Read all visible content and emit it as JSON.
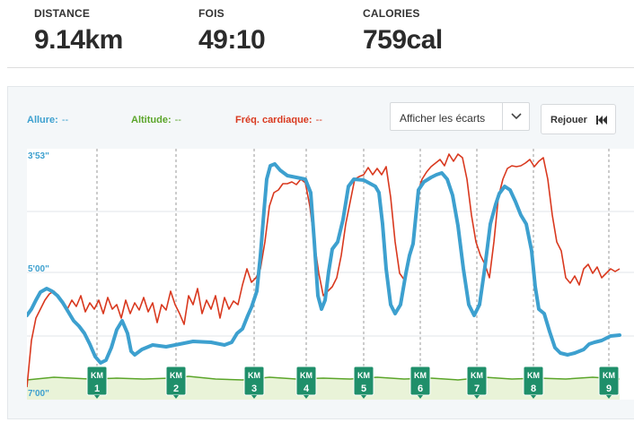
{
  "stats": [
    {
      "label": "DISTANCE",
      "value": "9.14km"
    },
    {
      "label": "FOIS",
      "value": "49:10"
    },
    {
      "label": "CALORIES",
      "value": "759cal"
    }
  ],
  "legend": {
    "pace": {
      "label": "Allure:",
      "value": "--",
      "color": "#3da0cf"
    },
    "altitude": {
      "label": "Altitude:",
      "value": "--",
      "color": "#5ba52a"
    },
    "heart": {
      "label": "Fréq. cardiaque:",
      "value": "--",
      "color": "#d9391f"
    }
  },
  "controls": {
    "splits_select": "Afficher les écarts",
    "replay_button": "Rejouer"
  },
  "chart_data": {
    "type": "line",
    "y_ticks": [
      "3'53\"",
      "5'00\"",
      "7'00\""
    ],
    "km_markers": [
      "1",
      "2",
      "3",
      "4",
      "5",
      "6",
      "7",
      "8",
      "9"
    ],
    "km_prefix": "KM",
    "colors": {
      "pace": "#3da0cf",
      "heart": "#d9391f",
      "altitude": "#5ba52a",
      "altitude_fill": "#e9f3d8"
    }
  }
}
